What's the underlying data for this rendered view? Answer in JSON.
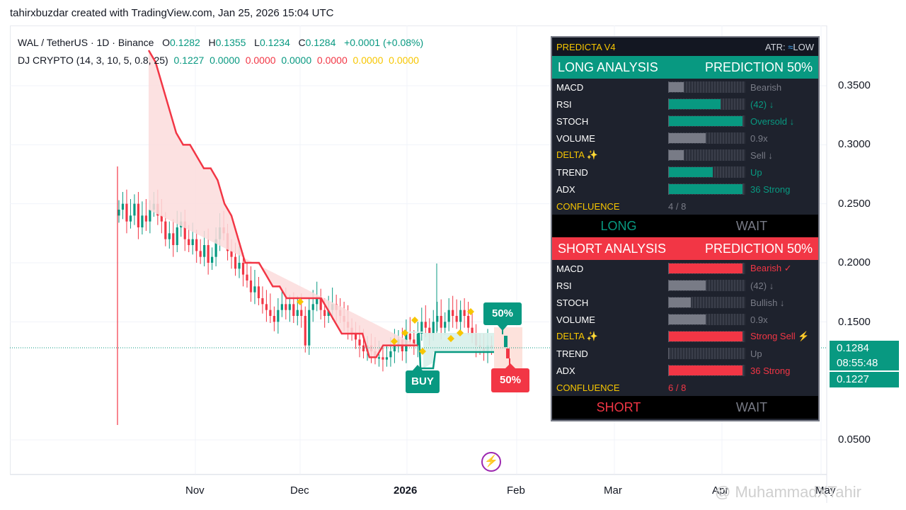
{
  "header": {
    "credit": "tahirxbuzdar created with TradingView.com, Jan 25, 2026 15:04 UTC"
  },
  "legend": {
    "symbol": "WAL / TetherUS · 1D · Binance",
    "o_label": "O",
    "o_value": "0.1282",
    "h_label": "H",
    "h_value": "0.1355",
    "l_label": "L",
    "l_value": "0.1234",
    "c_label": "C",
    "c_value": "0.1284",
    "change": "+0.0001 (+0.08%)",
    "indicator": "DJ CRYPTO (14, 3, 10, 5, 0.8, 25)",
    "ind_values": [
      "0.1227",
      "0.0000",
      "0.0000",
      "0.0000",
      "0.0000",
      "0.0000",
      "0.0000"
    ]
  },
  "panel": {
    "title": "PREDICTA V4",
    "atr_label": "ATR:",
    "atr_icon": "≈",
    "atr_value": "LOW",
    "long": {
      "header_left": "LONG ANALYSIS",
      "header_right": "PREDICTION 50%",
      "rows": [
        {
          "label": "MACD",
          "value": "Bearish",
          "fill": 0.2,
          "color": "#787b86",
          "text_color": "#787b86"
        },
        {
          "label": "RSI",
          "value": "(42) ↓",
          "fill": 0.7,
          "color": "#089981",
          "text_color": "#089981"
        },
        {
          "label": "STOCH",
          "value": "Oversold ↓",
          "fill": 1.0,
          "color": "#089981",
          "text_color": "#089981"
        },
        {
          "label": "VOLUME",
          "value": "0.9x",
          "fill": 0.5,
          "color": "#787b86",
          "text_color": "#787b86"
        },
        {
          "label": "DELTA ✨",
          "value": "Sell ↓",
          "fill": 0.2,
          "color": "#787b86",
          "text_color": "#787b86"
        },
        {
          "label": "TREND",
          "value": "Up",
          "fill": 0.6,
          "color": "#089981",
          "text_color": "#089981"
        },
        {
          "label": "ADX",
          "value": "36 Strong",
          "fill": 1.0,
          "color": "#089981",
          "text_color": "#089981"
        }
      ],
      "confluence_label": "CONFLUENCE",
      "confluence_value": "4 / 8",
      "signal": "LONG",
      "action": "WAIT"
    },
    "short": {
      "header_left": "SHORT ANALYSIS",
      "header_right": "PREDICTION 50%",
      "rows": [
        {
          "label": "MACD",
          "value": "Bearish ✓",
          "fill": 1.0,
          "color": "#f23645",
          "text_color": "#f23645"
        },
        {
          "label": "RSI",
          "value": "(42) ↓",
          "fill": 0.5,
          "color": "#787b86",
          "text_color": "#787b86"
        },
        {
          "label": "STOCH",
          "value": "Bullish ↓",
          "fill": 0.3,
          "color": "#787b86",
          "text_color": "#787b86"
        },
        {
          "label": "VOLUME",
          "value": "0.9x",
          "fill": 0.5,
          "color": "#787b86",
          "text_color": "#787b86"
        },
        {
          "label": "DELTA ✨",
          "value": "Strong Sell ⚡",
          "fill": 1.0,
          "color": "#f23645",
          "text_color": "#f23645"
        },
        {
          "label": "TREND",
          "value": "Up",
          "fill": 0.0,
          "color": "#787b86",
          "text_color": "#787b86"
        },
        {
          "label": "ADX",
          "value": "36 Strong",
          "fill": 1.0,
          "color": "#f23645",
          "text_color": "#f23645"
        }
      ],
      "confluence_label": "CONFLUENCE",
      "confluence_value": "6 / 8",
      "signal": "SHORT",
      "action": "WAIT"
    }
  },
  "labels": {
    "buy": "BUY",
    "up_pct": "50%",
    "down_pct": "50%"
  },
  "price_tags": {
    "last": "0.1284",
    "countdown": "08:55:48",
    "indicator": "0.1227"
  },
  "watermark": "@ MuhammadXTahir",
  "colors": {
    "up": "#089981",
    "down": "#f23645",
    "stop_fill_red": "#fcdcdc",
    "stop_fill_green": "#d7f0ea",
    "signal": "#f7c600"
  },
  "chart_data": {
    "type": "candlestick",
    "y_ticks": [
      "0.3500",
      "0.3000",
      "0.2500",
      "0.2000",
      "0.1500",
      "0.0500"
    ],
    "y_tick_values": [
      0.35,
      0.3,
      0.25,
      0.2,
      0.15,
      0.05
    ],
    "x_ticks": [
      "Nov",
      "Dec",
      "2026",
      "Feb",
      "Mar",
      "Apr",
      "May"
    ],
    "ylim": [
      0.04,
      0.39
    ],
    "close_series": [
      0.245,
      0.25,
      0.235,
      0.24,
      0.25,
      0.23,
      0.24,
      0.235,
      0.245,
      0.25,
      0.24,
      0.235,
      0.22,
      0.225,
      0.215,
      0.23,
      0.235,
      0.22,
      0.215,
      0.22,
      0.21,
      0.205,
      0.215,
      0.2,
      0.205,
      0.22,
      0.23,
      0.225,
      0.21,
      0.205,
      0.195,
      0.2,
      0.19,
      0.185,
      0.175,
      0.18,
      0.17,
      0.165,
      0.16,
      0.155,
      0.15,
      0.16,
      0.165,
      0.16,
      0.165,
      0.155,
      0.16,
      0.155,
      0.13,
      0.16,
      0.165,
      0.17,
      0.16,
      0.155,
      0.16,
      0.165,
      0.16,
      0.155,
      0.15,
      0.145,
      0.14,
      0.135,
      0.13,
      0.125,
      0.13,
      0.125,
      0.12,
      0.12,
      0.118,
      0.12,
      0.125,
      0.13,
      0.135,
      0.125,
      0.14,
      0.135,
      0.13,
      0.14,
      0.15,
      0.145,
      0.14,
      0.15,
      0.155,
      0.145,
      0.15,
      0.16,
      0.155,
      0.15,
      0.16,
      0.155,
      0.145,
      0.14,
      0.13,
      0.128,
      0.125,
      0.13,
      0.128
    ],
    "stop_series": [
      0.38,
      0.37,
      0.35,
      0.33,
      0.31,
      0.3,
      0.3,
      0.29,
      0.28,
      0.28,
      0.27,
      0.25,
      0.24,
      0.22,
      0.2,
      0.2,
      0.2,
      0.19,
      0.18,
      0.18,
      0.17,
      0.17,
      0.17,
      0.17,
      0.17,
      0.17,
      0.16,
      0.15,
      0.14,
      0.14,
      0.14,
      0.14,
      0.12,
      0.12,
      0.13,
      0.13,
      0.13,
      0.13,
      0.13,
      0.13
    ]
  }
}
